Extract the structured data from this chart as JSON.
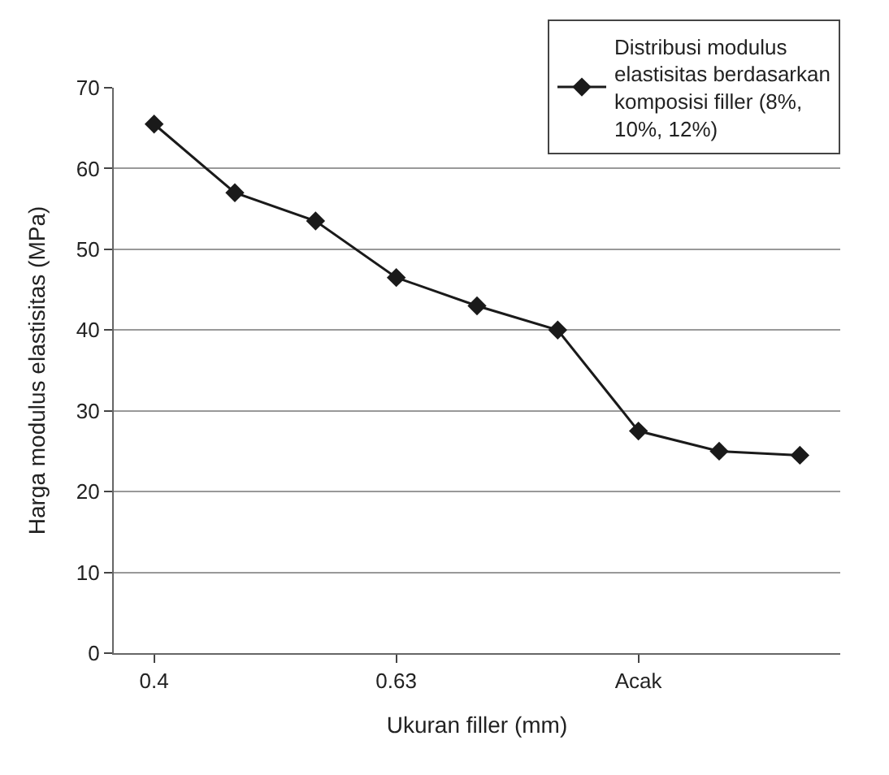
{
  "chart_data": {
    "type": "line",
    "xlabel": "Ukuran filler (mm)",
    "ylabel": "Harga modulus elastisitas (MPa)",
    "categories": [
      "0.4",
      null,
      null,
      "0.63",
      null,
      null,
      "Acak",
      null,
      null
    ],
    "series": [
      {
        "name": "Distribusi modulus elastisitas berdasarkan komposisi filler (8%, 10%, 12%)",
        "color": "#1a1a1a",
        "values": [
          65.5,
          57,
          53.5,
          46.5,
          43,
          40,
          27.5,
          25,
          24.5
        ]
      }
    ],
    "ylim": [
      0,
      70
    ],
    "yticks": [
      0,
      10,
      20,
      30,
      40,
      50,
      60,
      70
    ],
    "grid": "y",
    "legend": "top right",
    "marker": "diamond",
    "line_style": "solid"
  }
}
